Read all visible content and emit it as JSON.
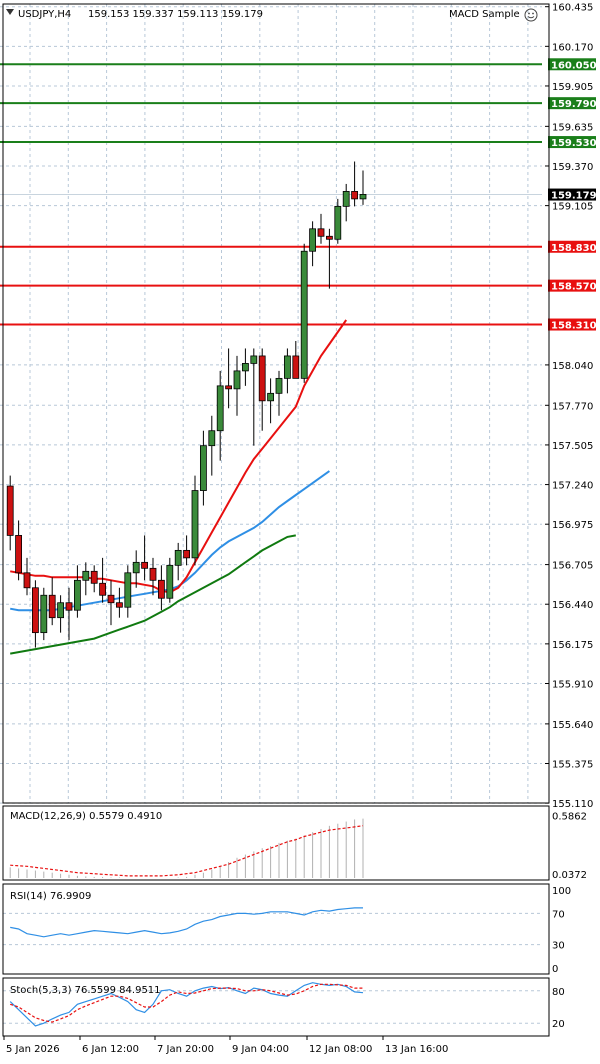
{
  "window": {
    "title": "USDJPY,H4",
    "ohlc": "159.153 159.337 159.113 159.179",
    "expert": "MACD Sample",
    "expert_icon": "smiley-icon",
    "dropdown_icon": "triangle-down-icon"
  },
  "colors": {
    "bull_candle": "#3a8a3a",
    "bear_candle": "#cc1111",
    "resistance": "#1a7f1a",
    "support": "#e81010",
    "ma_fast": "#e81010",
    "ma_mid": "#2f8fe5",
    "ma_slow": "#107a10",
    "grid": "#b8c8d8",
    "rsi": "#2f8fe5",
    "stoch_main": "#2f8fe5",
    "stoch_signal": "#e81010"
  },
  "chart_data": {
    "type": "candlestick",
    "symbol": "USDJPY",
    "timeframe": "H4",
    "ylim": [
      155.111,
      160.453
    ],
    "price_ticks": [
      "160.435",
      "160.170",
      "159.905",
      "159.635",
      "159.370",
      "159.105",
      "158.040",
      "157.770",
      "157.505",
      "157.240",
      "156.975",
      "156.705",
      "156.440",
      "156.175",
      "155.910",
      "155.640",
      "155.375",
      "155.110"
    ],
    "x_ticks": [
      "5 Jan 2026",
      "6 Jan 12:00",
      "7 Jan 20:00",
      "9 Jan 04:00",
      "12 Jan 08:00",
      "13 Jan 16:00"
    ],
    "current_price": "159.179",
    "resistance_levels": [
      {
        "label": "160.050",
        "value": 160.05
      },
      {
        "label": "159.790",
        "value": 159.79
      },
      {
        "label": "159.530",
        "value": 159.53
      }
    ],
    "support_levels": [
      {
        "label": "158.830",
        "value": 158.83
      },
      {
        "label": "158.570",
        "value": 158.57
      },
      {
        "label": "158.310",
        "value": 158.31
      }
    ],
    "candles": [
      [
        157.23,
        157.3,
        156.8,
        156.9
      ],
      [
        156.9,
        157.0,
        156.6,
        156.65
      ],
      [
        156.65,
        156.75,
        156.5,
        156.55
      ],
      [
        156.55,
        156.6,
        156.15,
        156.25
      ],
      [
        156.25,
        156.55,
        156.2,
        156.5
      ],
      [
        156.5,
        156.62,
        156.3,
        156.35
      ],
      [
        156.35,
        156.5,
        156.25,
        156.45
      ],
      [
        156.45,
        156.55,
        156.2,
        156.4
      ],
      [
        156.4,
        156.7,
        156.35,
        156.6
      ],
      [
        156.6,
        156.72,
        156.5,
        156.66
      ],
      [
        156.66,
        156.7,
        156.52,
        156.58
      ],
      [
        156.58,
        156.75,
        156.45,
        156.5
      ],
      [
        156.5,
        156.6,
        156.3,
        156.45
      ],
      [
        156.45,
        156.55,
        156.35,
        156.42
      ],
      [
        156.42,
        156.7,
        156.35,
        156.65
      ],
      [
        156.65,
        156.8,
        156.55,
        156.72
      ],
      [
        156.72,
        156.9,
        156.6,
        156.68
      ],
      [
        156.68,
        156.75,
        156.5,
        156.6
      ],
      [
        156.6,
        156.7,
        156.4,
        156.48
      ],
      [
        156.48,
        156.75,
        156.45,
        156.7
      ],
      [
        156.7,
        156.85,
        156.6,
        156.8
      ],
      [
        156.8,
        156.9,
        156.7,
        156.75
      ],
      [
        156.75,
        157.3,
        156.7,
        157.2
      ],
      [
        157.2,
        157.6,
        157.1,
        157.5
      ],
      [
        157.5,
        157.7,
        157.3,
        157.6
      ],
      [
        157.6,
        158.0,
        157.4,
        157.9
      ],
      [
        157.9,
        158.15,
        157.75,
        157.88
      ],
      [
        157.88,
        158.1,
        157.7,
        158.0
      ],
      [
        158.0,
        158.15,
        157.9,
        158.05
      ],
      [
        158.05,
        158.15,
        157.5,
        158.1
      ],
      [
        158.1,
        158.15,
        157.6,
        157.8
      ],
      [
        157.8,
        157.95,
        157.65,
        157.85
      ],
      [
        157.85,
        158.0,
        157.7,
        157.95
      ],
      [
        157.95,
        158.15,
        157.85,
        158.1
      ],
      [
        158.1,
        158.2,
        157.95,
        157.95
      ],
      [
        157.95,
        158.85,
        157.92,
        158.8
      ],
      [
        158.8,
        159.0,
        158.7,
        158.95
      ],
      [
        158.95,
        159.05,
        158.85,
        158.9
      ],
      [
        158.9,
        158.95,
        158.55,
        158.88
      ],
      [
        158.88,
        159.15,
        158.85,
        159.1
      ],
      [
        159.1,
        159.25,
        159.0,
        159.2
      ],
      [
        159.2,
        159.4,
        159.1,
        159.15
      ],
      [
        159.15,
        159.34,
        159.11,
        159.18
      ]
    ],
    "ma_fast": [
      156.66,
      156.65,
      156.64,
      156.63,
      156.63,
      156.62,
      156.62,
      156.62,
      156.62,
      156.62,
      156.61,
      156.61,
      156.6,
      156.59,
      156.58,
      156.58,
      156.57,
      156.56,
      156.53,
      156.52,
      156.55,
      156.62,
      156.72,
      156.82,
      156.92,
      157.02,
      157.12,
      157.22,
      157.32,
      157.41,
      157.48,
      157.55,
      157.62,
      157.69,
      157.76,
      157.9,
      158.0,
      158.1,
      158.18,
      158.26,
      158.34
    ],
    "ma_mid": [
      156.41,
      156.4,
      156.4,
      156.4,
      156.4,
      156.4,
      156.41,
      156.42,
      156.43,
      156.44,
      156.45,
      156.46,
      156.47,
      156.48,
      156.49,
      156.5,
      156.51,
      156.52,
      156.53,
      156.54,
      156.56,
      156.6,
      156.65,
      156.71,
      156.77,
      156.82,
      156.86,
      156.89,
      156.92,
      156.95,
      156.99,
      157.04,
      157.09,
      157.13,
      157.17,
      157.21,
      157.25,
      157.29,
      157.33
    ],
    "ma_slow": [
      156.11,
      156.12,
      156.13,
      156.14,
      156.15,
      156.16,
      156.17,
      156.18,
      156.19,
      156.2,
      156.21,
      156.23,
      156.25,
      156.27,
      156.29,
      156.31,
      156.33,
      156.36,
      156.39,
      156.42,
      156.46,
      156.49,
      156.52,
      156.55,
      156.58,
      156.61,
      156.64,
      156.68,
      156.72,
      156.76,
      156.8,
      156.83,
      156.86,
      156.89,
      156.9
    ],
    "macd": {
      "label": "MACD(12,26,9) 0.5579 0.4910",
      "ticks": [
        "0.5862",
        "0.0372"
      ],
      "histogram": [
        0.1,
        0.09,
        0.08,
        0.07,
        0.06,
        0.05,
        0.04,
        0.03,
        0.02,
        0.015,
        0.01,
        0.01,
        0.005,
        0.005,
        0.0,
        0.0,
        0.0,
        0.0,
        0.0,
        0.0,
        0.005,
        0.01,
        0.03,
        0.05,
        0.08,
        0.11,
        0.15,
        0.19,
        0.22,
        0.25,
        0.28,
        0.3,
        0.33,
        0.35,
        0.37,
        0.4,
        0.43,
        0.46,
        0.49,
        0.51,
        0.53,
        0.55,
        0.5579
      ],
      "signal": [
        0.12,
        0.115,
        0.11,
        0.1,
        0.09,
        0.08,
        0.07,
        0.06,
        0.05,
        0.045,
        0.04,
        0.035,
        0.03,
        0.025,
        0.02,
        0.02,
        0.02,
        0.02,
        0.02,
        0.025,
        0.03,
        0.04,
        0.05,
        0.07,
        0.09,
        0.11,
        0.13,
        0.16,
        0.19,
        0.22,
        0.25,
        0.28,
        0.31,
        0.34,
        0.36,
        0.39,
        0.41,
        0.43,
        0.45,
        0.46,
        0.47,
        0.48,
        0.491
      ]
    },
    "rsi": {
      "label": "RSI(14) 76.9909",
      "ticks": [
        "100",
        "70",
        "30",
        "0"
      ],
      "values": [
        52,
        50,
        44,
        42,
        40,
        42,
        44,
        42,
        44,
        46,
        48,
        47,
        46,
        45,
        44,
        46,
        48,
        46,
        44,
        45,
        47,
        50,
        56,
        60,
        62,
        66,
        68,
        70,
        70,
        69,
        70,
        72,
        72,
        72,
        70,
        68,
        72,
        74,
        73,
        75,
        76,
        77,
        76.99
      ]
    },
    "stochastic": {
      "label": "Stoch(5,3,3) 76.5599 84.9511",
      "ticks": [
        "80",
        "20"
      ],
      "main": [
        60,
        45,
        30,
        15,
        20,
        28,
        35,
        40,
        55,
        60,
        65,
        70,
        75,
        68,
        60,
        45,
        40,
        55,
        80,
        82,
        75,
        70,
        80,
        85,
        88,
        84,
        86,
        80,
        75,
        85,
        82,
        75,
        72,
        70,
        80,
        90,
        95,
        92,
        90,
        92,
        88,
        78,
        76.56
      ],
      "signal": [
        55,
        50,
        40,
        30,
        25,
        22,
        28,
        34,
        45,
        52,
        58,
        64,
        70,
        70,
        66,
        58,
        50,
        50,
        60,
        72,
        78,
        75,
        76,
        80,
        84,
        85,
        85,
        84,
        80,
        80,
        82,
        80,
        76,
        72,
        74,
        80,
        88,
        92,
        92,
        91,
        90,
        85,
        84.95
      ]
    }
  }
}
